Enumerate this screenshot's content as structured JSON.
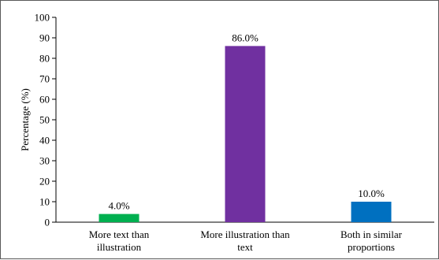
{
  "chart_data": {
    "type": "bar",
    "title": "",
    "ylabel": "Percentage (%)",
    "xlabel": "",
    "ylim": [
      0,
      100
    ],
    "yticks": [
      "0",
      "10",
      "20",
      "30",
      "40",
      "50",
      "60",
      "70",
      "80",
      "90",
      "100"
    ],
    "grid": false,
    "legend": "none",
    "categories": [
      [
        "More text than",
        "illustration"
      ],
      [
        "More illustration than",
        "text"
      ],
      [
        "Both in similar",
        "proportions"
      ]
    ],
    "values": [
      4.0,
      86.0,
      10.0
    ],
    "data_labels": [
      "4.0%",
      "86.0%",
      "10.0%"
    ],
    "colors": [
      "#00B050",
      "#7030A0",
      "#0070C0"
    ]
  }
}
